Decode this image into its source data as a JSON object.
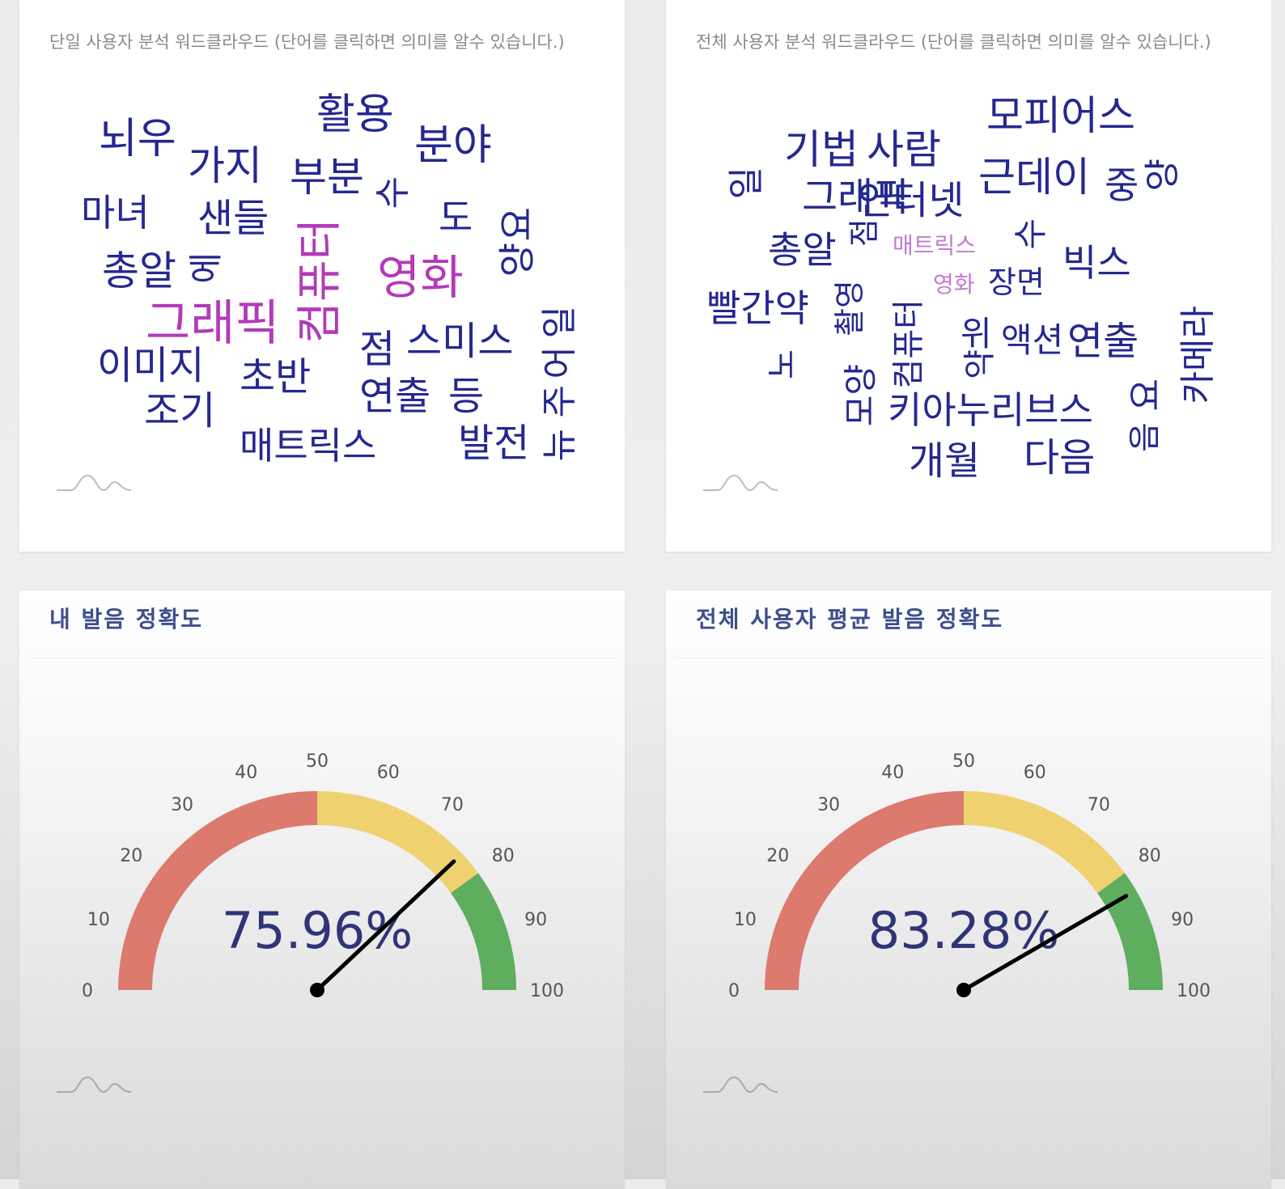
{
  "wordcloud_single": {
    "title": "단일 사용자 분석 워드클라우드 (단어를 클릭하면 의미를 알수 있습니다.)",
    "words": [
      "활용",
      "뇌우",
      "가지",
      "분야",
      "부분",
      "수",
      "마녀",
      "샌들",
      "도",
      "요",
      "총알",
      "에",
      "컴퓨터",
      "영화",
      "양",
      "그래픽",
      "점",
      "스미스",
      "일",
      "어",
      "이미지",
      "초반",
      "연출",
      "등",
      "주",
      "조기",
      "매트릭스",
      "발전",
      "뉴"
    ]
  },
  "wordcloud_all": {
    "title": "전체 사용자 분석 워드클라우드 (단어를 클릭하면 의미를 알수 있습니다.)",
    "words": [
      "모피어스",
      "기법",
      "사람",
      "근데이",
      "중",
      "일",
      "그래픽",
      "인터넷",
      "양",
      "총알",
      "점",
      "매트릭스",
      "수",
      "빅스",
      "영화",
      "장면",
      "빨간약",
      "촬영",
      "컴퓨터",
      "위",
      "액션",
      "연출",
      "카메라",
      "노",
      "모양",
      "약",
      "키아누리브스",
      "요",
      "음",
      "개월",
      "다음"
    ]
  },
  "gauge_mine": {
    "title": "내 발음 정확도",
    "value": 75.96,
    "value_label": "75.96%",
    "ticks": [
      "0",
      "10",
      "20",
      "30",
      "40",
      "50",
      "60",
      "70",
      "80",
      "90",
      "100"
    ]
  },
  "gauge_all": {
    "title": "전체 사용자 평균 발음 정확도",
    "value": 83.28,
    "value_label": "83.28%",
    "ticks": [
      "0",
      "10",
      "20",
      "30",
      "40",
      "50",
      "60",
      "70",
      "80",
      "90",
      "100"
    ]
  },
  "gauge_bands": [
    {
      "from": 0,
      "to": 50,
      "color": "#dc7a6e"
    },
    {
      "from": 50,
      "to": 80,
      "color": "#efd170"
    },
    {
      "from": 80,
      "to": 100,
      "color": "#5fad5f"
    }
  ],
  "colors": {
    "word": "#25288f",
    "word_highlight": "#b33ab8",
    "value_text": "#2f3478",
    "title": "#3d4f8c",
    "needle": "#000000"
  },
  "icons": [
    "logo-mark-icon"
  ]
}
